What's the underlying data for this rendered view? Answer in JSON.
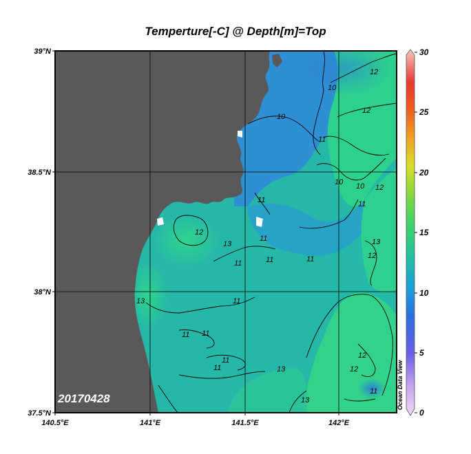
{
  "title": "Temperture[-C] @ Depth[m]=Top",
  "date_stamp": "20170428",
  "watermark": "Ocean Data View",
  "lat_ticks": [
    "39°N",
    "38.5°N",
    "38°N",
    "37.5°N"
  ],
  "lon_ticks": [
    "140.5°E",
    "141°E",
    "141.5°E",
    "142°E"
  ],
  "colorbar": {
    "ticks": [
      "30",
      "25",
      "20",
      "15",
      "10",
      "5",
      "0"
    ],
    "min": 0,
    "max": 30
  },
  "colors": {
    "land": "#5a5858",
    "ocean_cool": "#2f8fd4",
    "ocean_mid": "#22b8a8",
    "ocean_warm": "#2ed38a"
  },
  "contour_labels": [
    "10",
    "10",
    "10",
    "10",
    "11",
    "11",
    "11",
    "11",
    "11",
    "11",
    "11",
    "11",
    "11",
    "11",
    "11",
    "11",
    "11",
    "12",
    "12",
    "12",
    "12",
    "12",
    "12",
    "12",
    "13",
    "13",
    "13",
    "13",
    "13"
  ],
  "chart_data": {
    "type": "heatmap",
    "title": "Temperture[-C] @ Depth[m]=Top",
    "variable": "Temperture[-C]",
    "depth": "Top",
    "date": "20170428",
    "lon_range": [
      140.5,
      142.3
    ],
    "lat_range": [
      37.5,
      39.0
    ],
    "color_range": [
      0,
      30
    ],
    "contour_levels": [
      10,
      11,
      12,
      13
    ],
    "grid": true
  }
}
